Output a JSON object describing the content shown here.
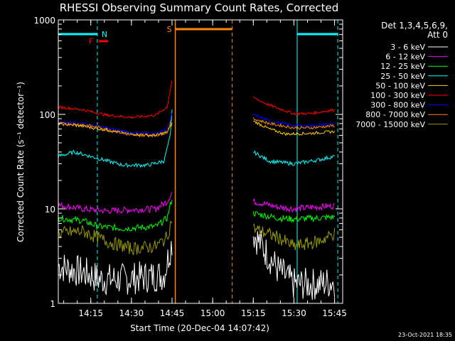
{
  "chart_data": {
    "type": "line",
    "title": "RHESSI Observing Summary Count Rates, Corrected",
    "xlabel": "Start Time (20-Dec-04 14:07:42)",
    "ylabel": "Corrected Count Rate (s⁻¹ detector⁻¹)",
    "yscale": "log",
    "ylim": [
      1,
      1000
    ],
    "xlim_minutes": [
      14.05,
      15.8
    ],
    "x_ticks": [
      {
        "label": "14:15",
        "t": 14.25
      },
      {
        "label": "14:30",
        "t": 14.5
      },
      {
        "label": "14:45",
        "t": 14.75
      },
      {
        "label": "15:00",
        "t": 15.0
      },
      {
        "label": "15:15",
        "t": 15.25
      },
      {
        "label": "15:30",
        "t": 15.5
      },
      {
        "label": "15:45",
        "t": 15.75
      }
    ],
    "y_ticks": [
      {
        "label": "1",
        "v": 1
      },
      {
        "label": "10",
        "v": 10
      },
      {
        "label": "100",
        "v": 100
      },
      {
        "label": "1000",
        "v": 1000
      }
    ],
    "legend": {
      "position": "top-right",
      "header1": "Det 1,3,4,5,6,9,",
      "header2": "Att 0"
    },
    "series": [
      {
        "name": "3 - 6 keV",
        "color": "#000000",
        "seg1": [
          [
            14.05,
            2.5
          ],
          [
            14.25,
            2.0
          ],
          [
            14.3,
            1.8
          ],
          [
            14.45,
            1.8
          ],
          [
            14.7,
            2.0
          ],
          [
            14.75,
            4.5
          ]
        ],
        "seg2": [
          [
            15.25,
            5.5
          ],
          [
            15.4,
            2.3
          ],
          [
            15.5,
            1.6
          ],
          [
            15.65,
            1.6
          ],
          [
            15.75,
            1.7
          ]
        ]
      },
      {
        "name": "6 - 12 keV",
        "color": "#ff00ff",
        "seg1": [
          [
            14.05,
            11
          ],
          [
            14.2,
            10
          ],
          [
            14.35,
            9.5
          ],
          [
            14.5,
            9.8
          ],
          [
            14.65,
            10
          ],
          [
            14.72,
            12
          ],
          [
            14.75,
            15
          ]
        ],
        "seg2": [
          [
            15.25,
            12
          ],
          [
            15.4,
            10.5
          ],
          [
            15.5,
            10
          ],
          [
            15.65,
            10.5
          ],
          [
            15.75,
            10.8
          ]
        ]
      },
      {
        "name": "12 - 25 keV",
        "color": "#00ff00",
        "seg1": [
          [
            14.05,
            8
          ],
          [
            14.2,
            7.5
          ],
          [
            14.3,
            6.5
          ],
          [
            14.45,
            6.2
          ],
          [
            14.65,
            6.5
          ],
          [
            14.72,
            8
          ],
          [
            14.75,
            13
          ]
        ],
        "seg2": [
          [
            15.25,
            9
          ],
          [
            15.4,
            8
          ],
          [
            15.5,
            7.8
          ],
          [
            15.65,
            8
          ],
          [
            15.75,
            8.2
          ]
        ]
      },
      {
        "name": "25 - 50 keV",
        "color": "#00ffff",
        "seg1": [
          [
            14.05,
            36
          ],
          [
            14.15,
            40
          ],
          [
            14.3,
            34
          ],
          [
            14.45,
            29
          ],
          [
            14.6,
            29
          ],
          [
            14.7,
            32
          ],
          [
            14.74,
            60
          ],
          [
            14.75,
            110
          ]
        ],
        "seg2": [
          [
            15.25,
            40
          ],
          [
            15.35,
            32
          ],
          [
            15.5,
            30
          ],
          [
            15.65,
            33
          ],
          [
            15.75,
            36
          ]
        ]
      },
      {
        "name": "50 - 100 keV",
        "color": "#ffcc00",
        "seg1": [
          [
            14.05,
            80
          ],
          [
            14.2,
            75
          ],
          [
            14.35,
            68
          ],
          [
            14.5,
            62
          ],
          [
            14.65,
            60
          ],
          [
            14.72,
            65
          ],
          [
            14.75,
            80
          ]
        ],
        "seg2": [
          [
            15.25,
            85
          ],
          [
            15.35,
            70
          ],
          [
            15.45,
            62
          ],
          [
            15.6,
            63
          ],
          [
            15.75,
            66
          ]
        ]
      },
      {
        "name": "100 - 300 keV",
        "color": "#ff0000",
        "seg1": [
          [
            14.05,
            120
          ],
          [
            14.2,
            112
          ],
          [
            14.35,
            98
          ],
          [
            14.5,
            93
          ],
          [
            14.65,
            98
          ],
          [
            14.72,
            120
          ],
          [
            14.75,
            230
          ]
        ],
        "seg2": [
          [
            15.25,
            150
          ],
          [
            15.35,
            125
          ],
          [
            15.5,
            102
          ],
          [
            15.6,
            102
          ],
          [
            15.75,
            112
          ]
        ]
      },
      {
        "name": "300 - 800 keV",
        "color": "#0000ff",
        "seg1": [
          [
            14.05,
            82
          ],
          [
            14.2,
            80
          ],
          [
            14.35,
            72
          ],
          [
            14.5,
            64
          ],
          [
            14.65,
            63
          ],
          [
            14.72,
            70
          ],
          [
            14.75,
            100
          ]
        ],
        "seg2": [
          [
            15.25,
            100
          ],
          [
            15.35,
            85
          ],
          [
            15.5,
            76
          ],
          [
            15.6,
            76
          ],
          [
            15.75,
            80
          ]
        ]
      },
      {
        "name": "800 - 7000 keV",
        "color": "#ff8800",
        "seg1": [
          [
            14.05,
            80
          ],
          [
            14.2,
            78
          ],
          [
            14.35,
            70
          ],
          [
            14.5,
            60
          ],
          [
            14.65,
            60
          ],
          [
            14.72,
            65
          ],
          [
            14.75,
            90
          ]
        ],
        "seg2": [
          [
            15.25,
            90
          ],
          [
            15.35,
            80
          ],
          [
            15.5,
            72
          ],
          [
            15.6,
            72
          ],
          [
            15.75,
            76
          ]
        ]
      },
      {
        "name": "7000 - 15000 keV",
        "color": "#999900",
        "seg1": [
          [
            14.05,
            5.5
          ],
          [
            14.2,
            5.8
          ],
          [
            14.35,
            4.5
          ],
          [
            14.5,
            3.8
          ],
          [
            14.65,
            4.0
          ],
          [
            14.72,
            5
          ],
          [
            14.75,
            8
          ]
        ],
        "seg2": [
          [
            15.25,
            6.2
          ],
          [
            15.4,
            5.0
          ],
          [
            15.5,
            4.0
          ],
          [
            15.65,
            4.5
          ],
          [
            15.75,
            5.5
          ]
        ]
      }
    ],
    "annotations": {
      "N": "N",
      "F": "F",
      "S": "S",
      "night_bars": [
        [
          14.05,
          14.29
        ],
        [
          15.52,
          15.77
        ]
      ],
      "saa_bar": [
        14.77,
        15.12
      ],
      "flare_bar": [
        14.29,
        14.33
      ],
      "cyan_dashed": [
        14.29,
        15.77
      ],
      "cyan_solid": [
        15.52
      ],
      "orange_solid": [
        14.77
      ],
      "orange_dashed": [
        15.12
      ]
    },
    "timestamp": "23-Oct-2021 18:35"
  }
}
